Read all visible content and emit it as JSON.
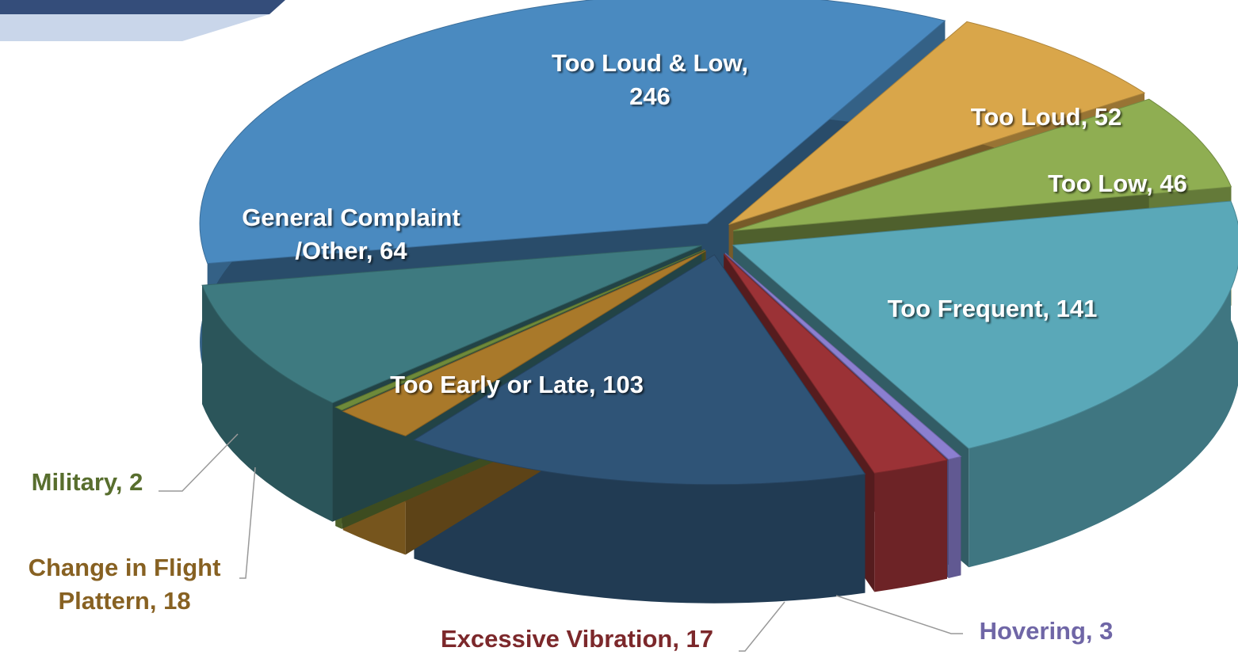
{
  "chart_data": {
    "type": "pie",
    "values": [
      246,
      52,
      46,
      141,
      3,
      17,
      103,
      18,
      2,
      64
    ],
    "value_labels": [
      [
        "Too Loud & Low,",
        "246"
      ],
      [
        "Too Loud, 52"
      ],
      [
        "Too Low, 46"
      ],
      [
        "Too Frequent, 141"
      ],
      [
        "Hovering, 3"
      ],
      [
        "Excessive Vibration, 17"
      ],
      [
        "Too Early or Late, 103"
      ],
      [
        "Change in Flight",
        "Plattern, 18"
      ],
      [
        "Military, 2"
      ],
      [
        "General Complaint",
        "/Other, 64"
      ]
    ],
    "colors": [
      "#4a8ac0",
      "#d9a64a",
      "#8fae52",
      "#5aa8b8",
      "#8b7fd0",
      "#9b3236",
      "#2f5477",
      "#a9792a",
      "#6e8a3a",
      "#3e7a80"
    ]
  }
}
